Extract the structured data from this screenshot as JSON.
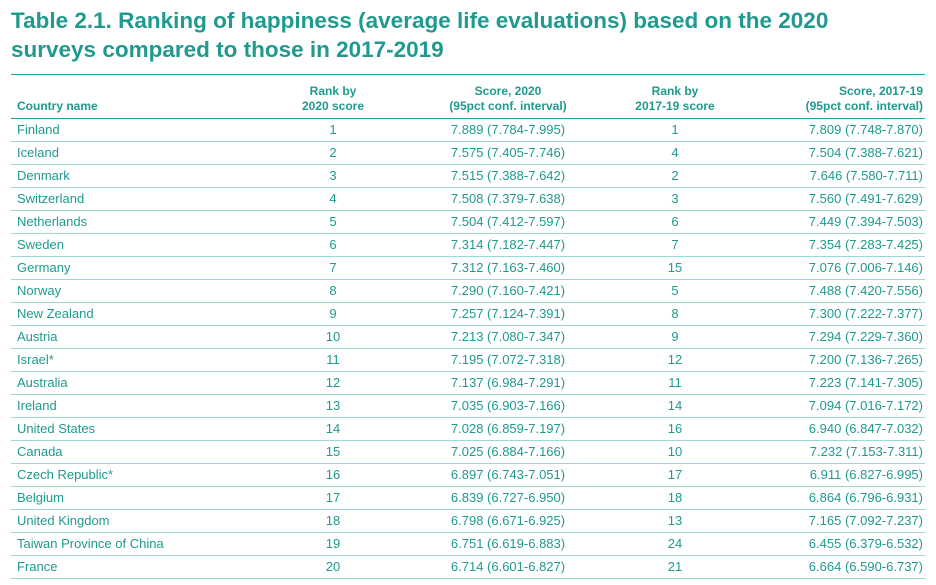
{
  "title": {
    "line1": "Table 2.1. Ranking of happiness (average life evaluations) based on the 2020",
    "line2": "surveys compared to those in 2017-2019"
  },
  "table": {
    "headers": {
      "country": "Country name",
      "rank2020": [
        "Rank by",
        "2020 score"
      ],
      "score2020": [
        "Score, 2020",
        "(95pct conf. interval)"
      ],
      "rank1719": [
        "Rank by",
        "2017-19 score"
      ],
      "score1719": [
        "Score, 2017-19",
        "(95pct conf. interval)"
      ]
    },
    "rows": [
      {
        "country": "Finland",
        "rank2020": "1",
        "score2020": "7.889 (7.784-7.995)",
        "rank1719": "1",
        "score1719": "7.809 (7.748-7.870)"
      },
      {
        "country": "Iceland",
        "rank2020": "2",
        "score2020": "7.575 (7.405-7.746)",
        "rank1719": "4",
        "score1719": "7.504 (7.388-7.621)"
      },
      {
        "country": "Denmark",
        "rank2020": "3",
        "score2020": "7.515 (7.388-7.642)",
        "rank1719": "2",
        "score1719": "7.646 (7.580-7.711)"
      },
      {
        "country": "Switzerland",
        "rank2020": "4",
        "score2020": "7.508 (7.379-7.638)",
        "rank1719": "3",
        "score1719": "7.560 (7.491-7.629)"
      },
      {
        "country": "Netherlands",
        "rank2020": "5",
        "score2020": "7.504 (7.412-7.597)",
        "rank1719": "6",
        "score1719": "7.449 (7.394-7.503)"
      },
      {
        "country": "Sweden",
        "rank2020": "6",
        "score2020": "7.314 (7.182-7.447)",
        "rank1719": "7",
        "score1719": "7.354 (7.283-7.425)"
      },
      {
        "country": "Germany",
        "rank2020": "7",
        "score2020": "7.312 (7.163-7.460)",
        "rank1719": "15",
        "score1719": "7.076 (7.006-7.146)"
      },
      {
        "country": "Norway",
        "rank2020": "8",
        "score2020": "7.290 (7.160-7.421)",
        "rank1719": "5",
        "score1719": "7.488 (7.420-7.556)"
      },
      {
        "country": "New Zealand",
        "rank2020": "9",
        "score2020": "7.257 (7.124-7.391)",
        "rank1719": "8",
        "score1719": "7.300 (7.222-7.377)"
      },
      {
        "country": "Austria",
        "rank2020": "10",
        "score2020": "7.213 (7.080-7.347)",
        "rank1719": "9",
        "score1719": "7.294 (7.229-7.360)"
      },
      {
        "country": "Israel*",
        "rank2020": "11",
        "score2020": "7.195 (7.072-7.318)",
        "rank1719": "12",
        "score1719": "7.200 (7.136-7.265)"
      },
      {
        "country": "Australia",
        "rank2020": "12",
        "score2020": "7.137 (6.984-7.291)",
        "rank1719": "11",
        "score1719": "7.223 (7.141-7.305)"
      },
      {
        "country": "Ireland",
        "rank2020": "13",
        "score2020": "7.035 (6.903-7.166)",
        "rank1719": "14",
        "score1719": "7.094 (7.016-7.172)"
      },
      {
        "country": "United States",
        "rank2020": "14",
        "score2020": "7.028 (6.859-7.197)",
        "rank1719": "16",
        "score1719": "6.940 (6.847-7.032)"
      },
      {
        "country": "Canada",
        "rank2020": "15",
        "score2020": "7.025 (6.884-7.166)",
        "rank1719": "10",
        "score1719": "7.232 (7.153-7.311)"
      },
      {
        "country": "Czech Republic*",
        "rank2020": "16",
        "score2020": "6.897 (6.743-7.051)",
        "rank1719": "17",
        "score1719": "6.911 (6.827-6.995)"
      },
      {
        "country": "Belgium",
        "rank2020": "17",
        "score2020": "6.839 (6.727-6.950)",
        "rank1719": "18",
        "score1719": "6.864 (6.796-6.931)"
      },
      {
        "country": "United Kingdom",
        "rank2020": "18",
        "score2020": "6.798 (6.671-6.925)",
        "rank1719": "13",
        "score1719": "7.165 (7.092-7.237)"
      },
      {
        "country": "Taiwan Province of China",
        "rank2020": "19",
        "score2020": "6.751 (6.619-6.883)",
        "rank1719": "24",
        "score1719": "6.455 (6.379-6.532)"
      },
      {
        "country": "France",
        "rank2020": "20",
        "score2020": "6.714 (6.601-6.827)",
        "rank1719": "21",
        "score1719": "6.664 (6.590-6.737)"
      }
    ]
  }
}
